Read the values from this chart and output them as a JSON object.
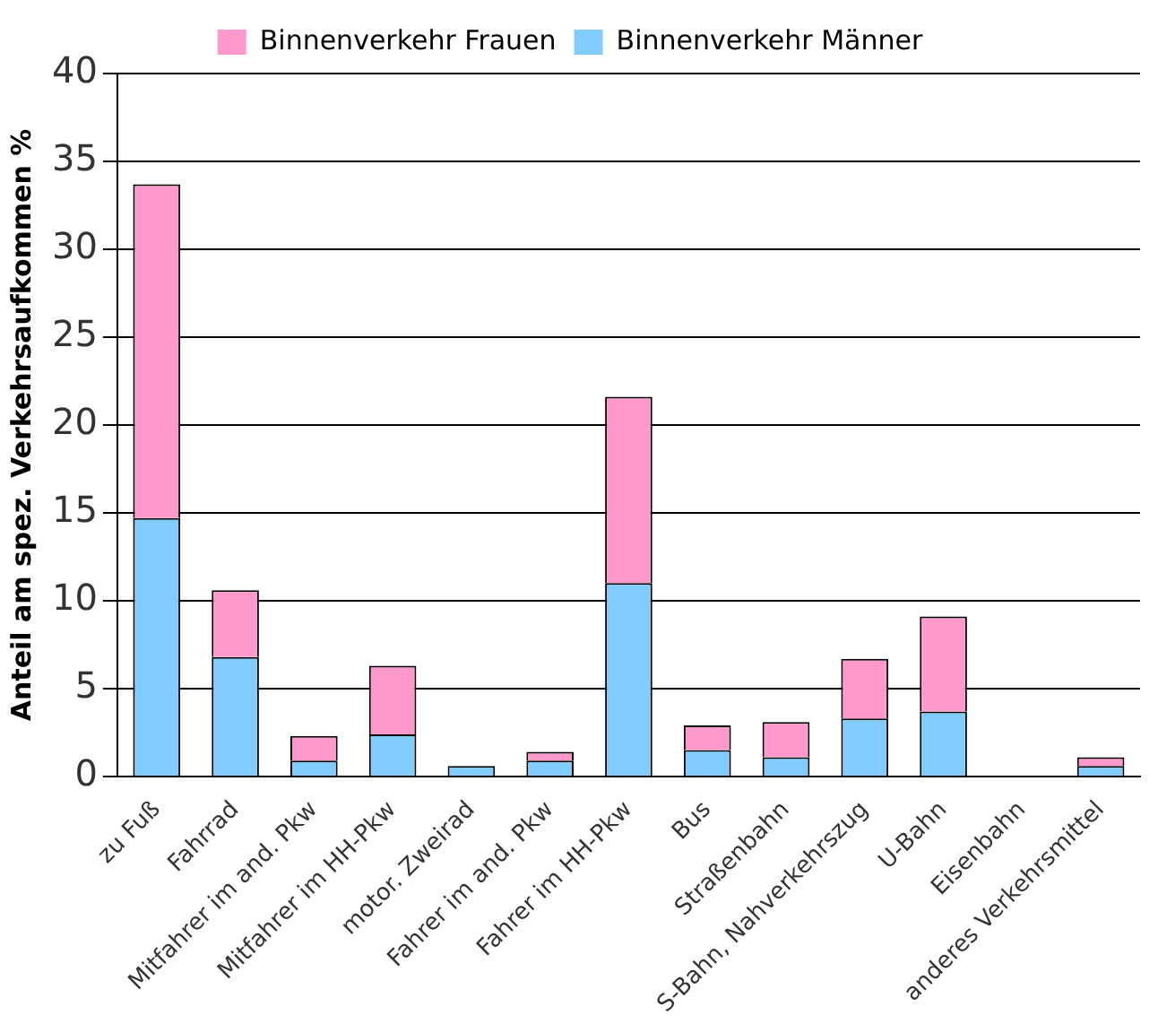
{
  "chart_data": {
    "type": "bar",
    "stacked": true,
    "ylabel": "Anteil am spez. Verkehrsaufkommen %",
    "categories": [
      "zu Fuß",
      "Fahrrad",
      "Mitfahrer im and. Pkw",
      "Mitfahrer im HH-Pkw",
      "motor. Zweirad",
      "Fahrer im and. Pkw",
      "Fahrer im HH-Pkw",
      "Bus",
      "Straßenbahn",
      "S-Bahn, Nahverkehrszug",
      "U-Bahn",
      "Eisenbahn",
      "anderes Verkehrsmittel"
    ],
    "series": [
      {
        "name": "Binnenverkehr Männer",
        "color": "#80ccff",
        "values": [
          14.7,
          6.8,
          0.9,
          2.4,
          0.6,
          0.9,
          11.0,
          1.5,
          1.1,
          3.3,
          3.7,
          0,
          0.6
        ]
      },
      {
        "name": "Binnenverkehr Frauen",
        "color": "#ff99cc",
        "values": [
          19.0,
          3.8,
          1.4,
          3.9,
          0,
          0.5,
          10.6,
          1.4,
          2.0,
          3.4,
          5.4,
          0,
          0.5
        ]
      }
    ],
    "ylim": [
      0,
      40
    ],
    "yticks": [
      0,
      5,
      10,
      15,
      20,
      25,
      30,
      35,
      40
    ],
    "grid": "y",
    "legend": "top"
  }
}
